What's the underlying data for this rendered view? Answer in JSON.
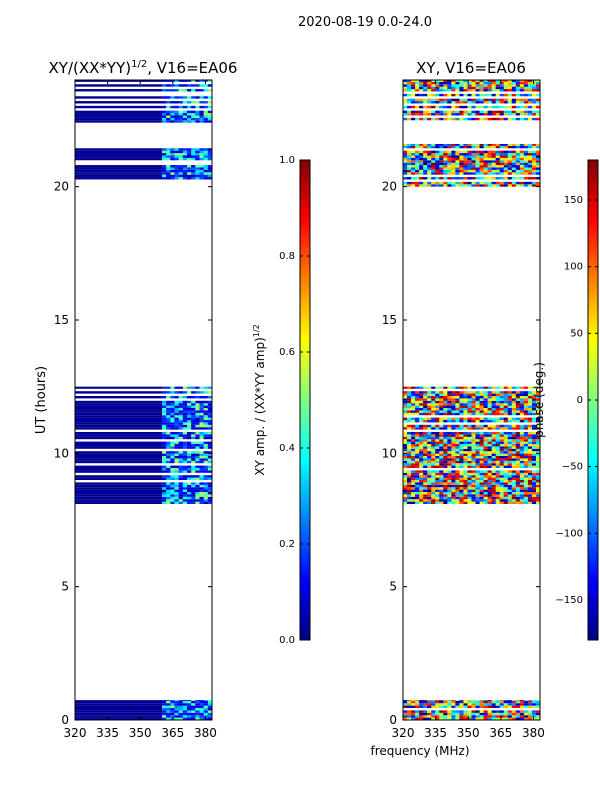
{
  "figure": {
    "suptitle": "2020-08-19 0.0-24.0",
    "shared_xlabel": "frequency (MHz)"
  },
  "colors": {
    "jet": [
      "#000080",
      "#0000ff",
      "#0080ff",
      "#00ffff",
      "#80ff80",
      "#ffff00",
      "#ff8000",
      "#ff0000",
      "#800000"
    ],
    "masked_white": "#ffffff",
    "axis": "#000000"
  },
  "chart_data": [
    {
      "type": "heatmap",
      "title_main": "XY/(XX*YY)",
      "title_sup": "1/2",
      "title_tail": ", V16=EA06",
      "ylabel": "UT (hours)",
      "xlim": [
        320,
        383
      ],
      "ylim": [
        0,
        24
      ],
      "xticks": [
        "320",
        "335",
        "350",
        "365",
        "380"
      ],
      "yticks": [
        "0",
        "5",
        "10",
        "15",
        "20"
      ],
      "data_blocks_hours": [
        [
          0.0,
          0.75
        ],
        [
          8.1,
          12.5
        ],
        [
          20.0,
          21.6
        ],
        [
          22.4,
          24.0
        ]
      ],
      "rfi_band_MHz": [
        360,
        383
      ],
      "colorbar": {
        "label_main": "XY amp. / (XX*YY amp)",
        "label_sup": "1/2",
        "range": [
          0.0,
          1.0
        ],
        "ticks": [
          "0.0",
          "0.2",
          "0.4",
          "0.6",
          "0.8",
          "1.0"
        ]
      },
      "description_value": "mostly low amplitude (~0.0) with moderate values (~0.2-0.5) above 360 MHz"
    },
    {
      "type": "heatmap",
      "title_main": "XY, V16=EA06",
      "ylabel": "",
      "xlim": [
        320,
        383
      ],
      "ylim": [
        0,
        24
      ],
      "xticks": [
        "320",
        "335",
        "350",
        "365",
        "380"
      ],
      "yticks": [
        "0",
        "5",
        "10",
        "15",
        "20"
      ],
      "data_blocks_hours": [
        [
          0.0,
          0.75
        ],
        [
          8.1,
          12.5
        ],
        [
          20.0,
          21.6
        ],
        [
          22.4,
          24.0
        ]
      ],
      "colorbar": {
        "label_main": "phase (deg.)",
        "range": [
          -180,
          180
        ],
        "ticks": [
          "−150",
          "−100",
          "−50",
          "0",
          "50",
          "100",
          "150"
        ]
      },
      "description_value": "phase spans the full −180..180 range, appearing noisy"
    }
  ]
}
